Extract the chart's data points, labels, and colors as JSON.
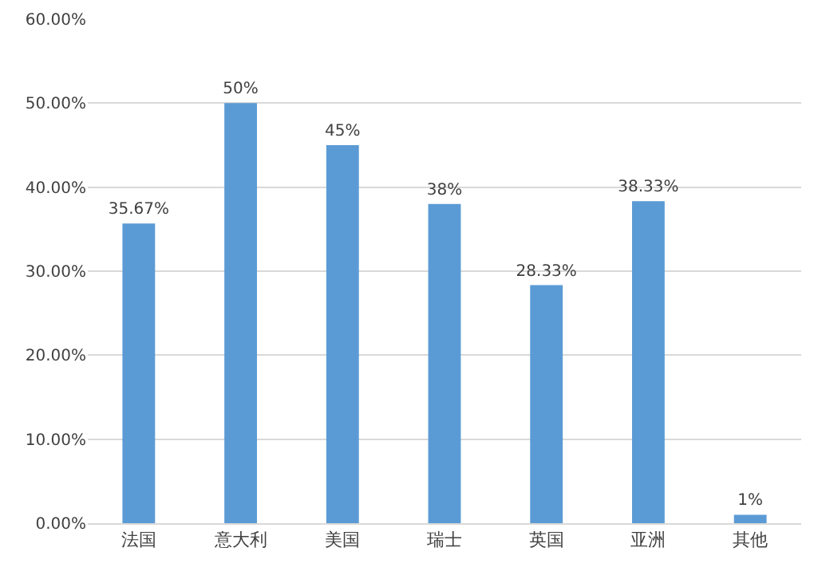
{
  "chart_data": {
    "type": "bar",
    "categories": [
      "法国",
      "意大利",
      "美国",
      "瑞士",
      "英国",
      "亚洲",
      "其他"
    ],
    "values": [
      35.67,
      50,
      45,
      38,
      28.33,
      38.33,
      1
    ],
    "value_labels": [
      "35.67%",
      "50%",
      "45%",
      "38%",
      "28.33%",
      "38.33%",
      "1%"
    ],
    "color": "#5b9bd5",
    "ylim": [
      0,
      60
    ],
    "yticks": [
      {
        "value": 0,
        "label": "0.00%"
      },
      {
        "value": 10,
        "label": "10.00%"
      },
      {
        "value": 20,
        "label": "20.00%"
      },
      {
        "value": 30,
        "label": "30.00%"
      },
      {
        "value": 40,
        "label": "40.00%"
      },
      {
        "value": 50,
        "label": "50.00%"
      },
      {
        "value": 60,
        "label": "60.00%"
      }
    ],
    "grid": "y"
  }
}
